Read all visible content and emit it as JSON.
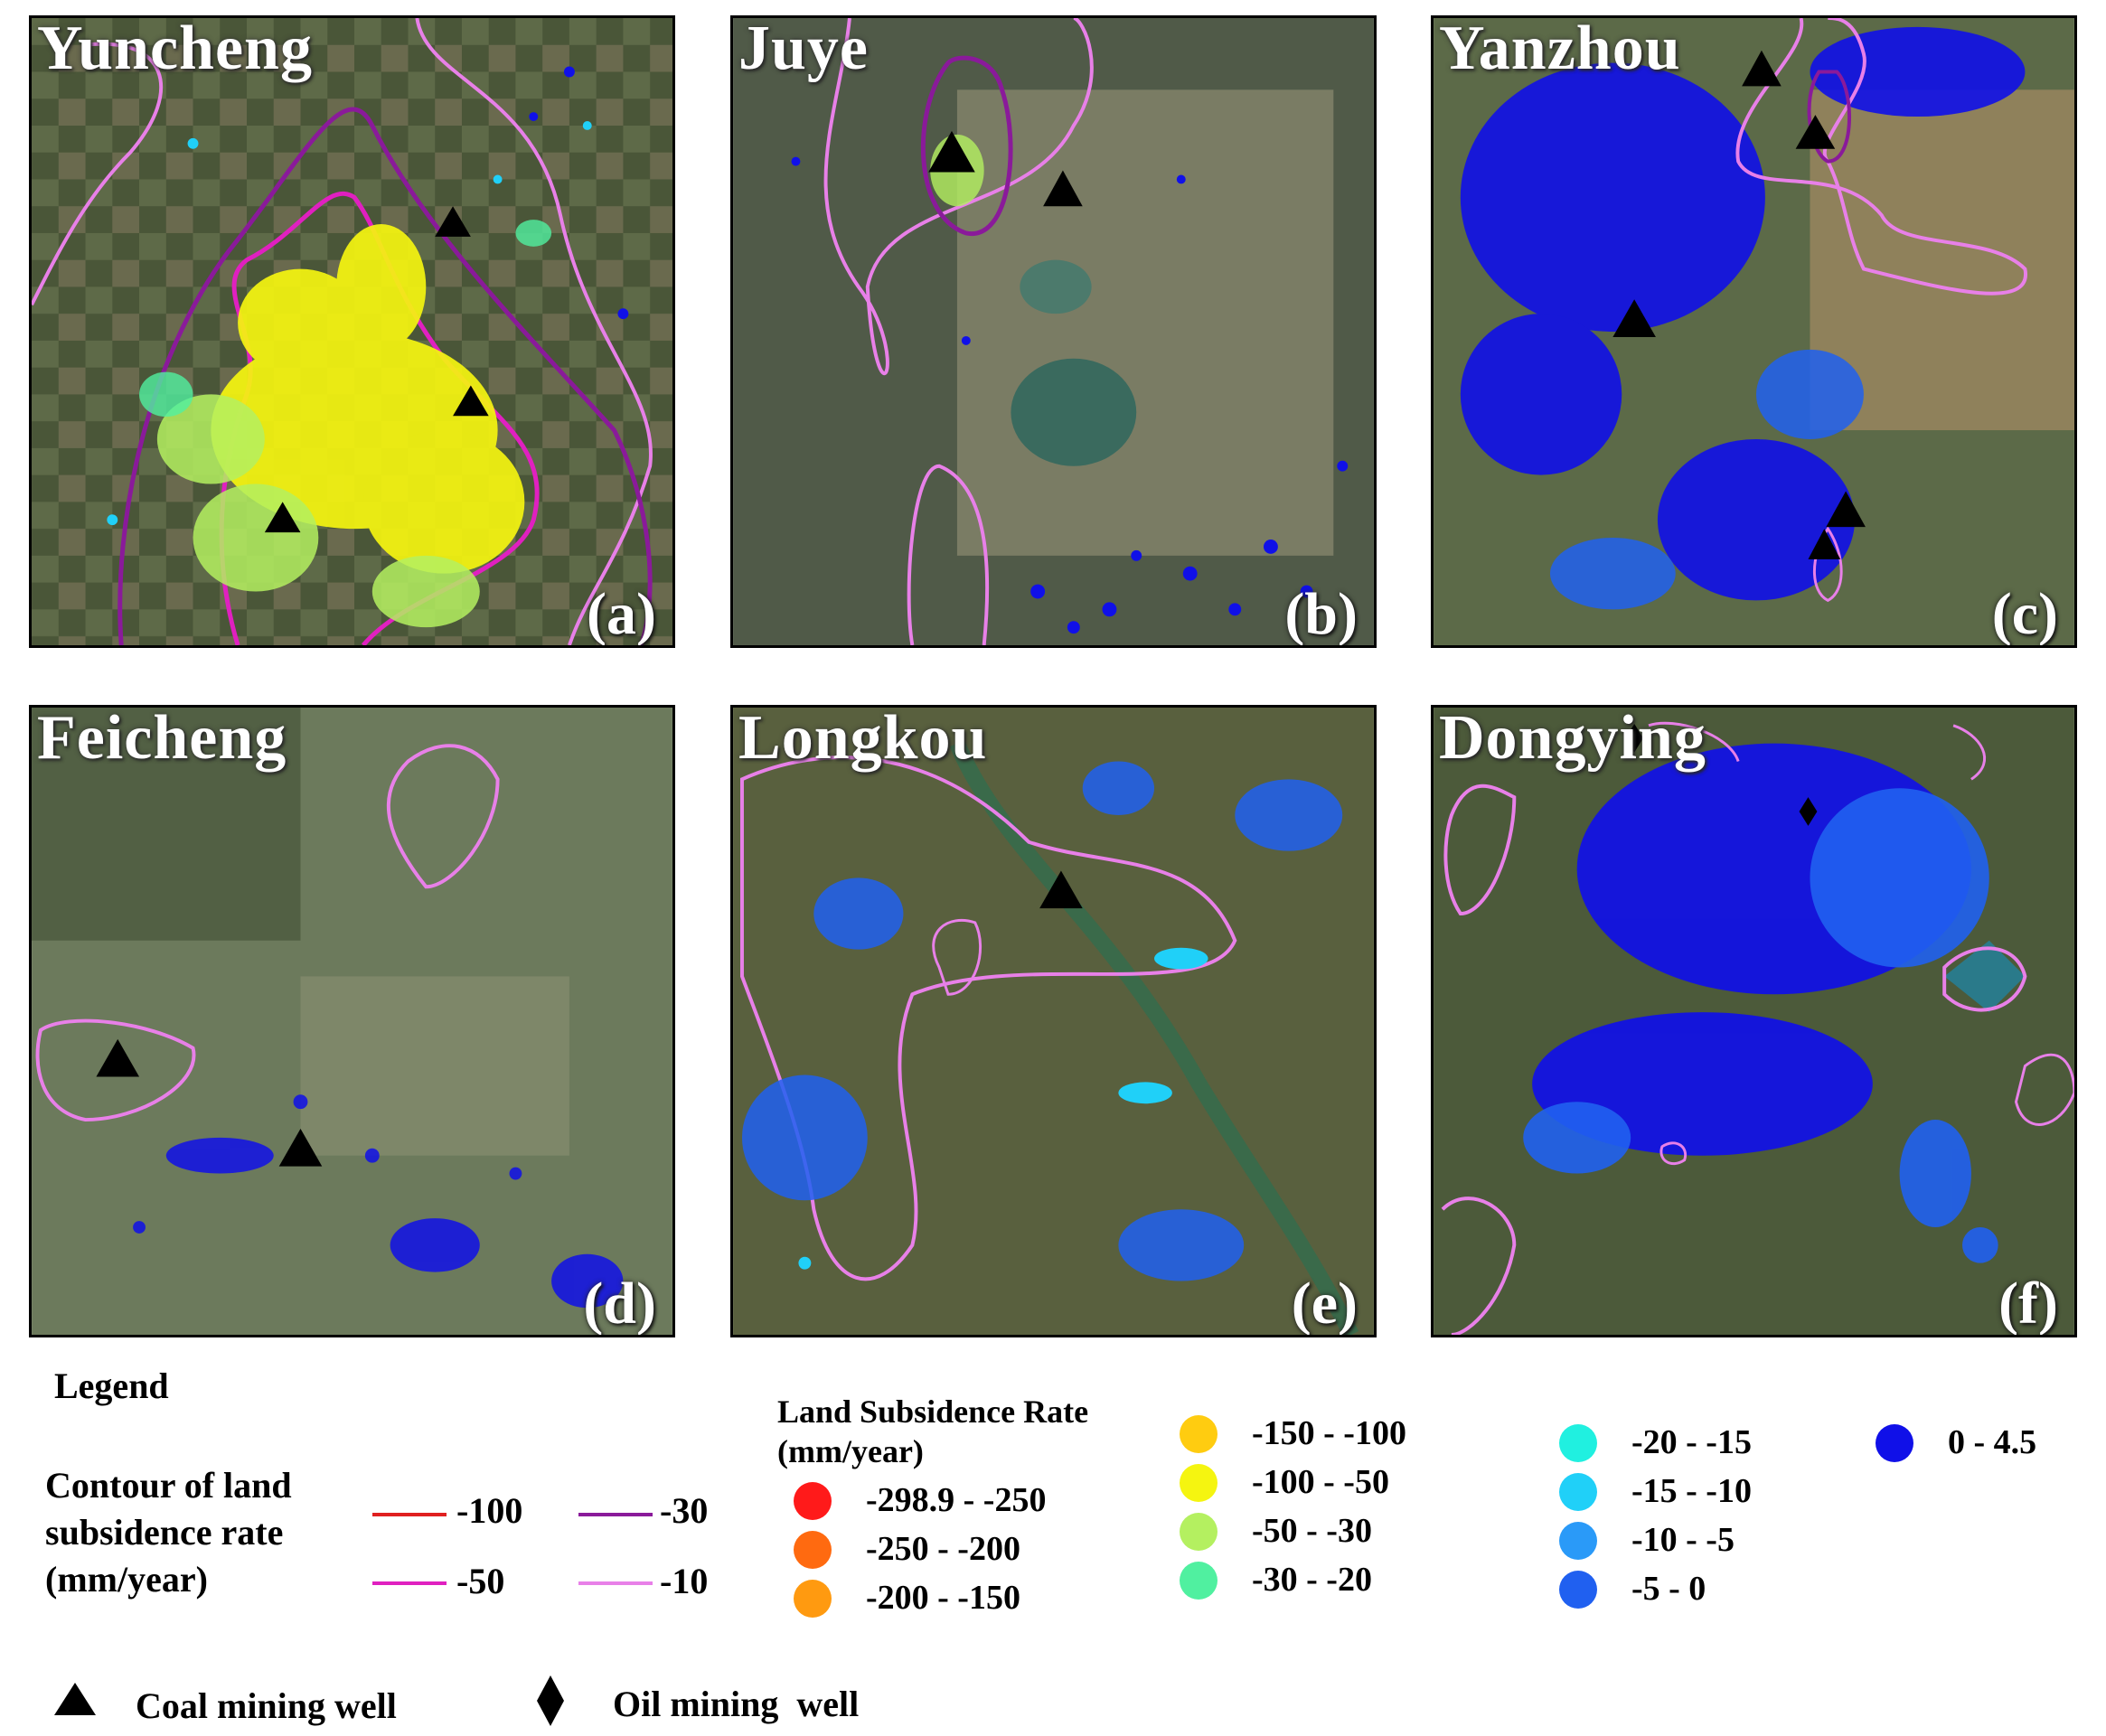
{
  "panels": [
    {
      "name": "Yuncheng",
      "label": "(a)"
    },
    {
      "name": "Juye",
      "label": "(b)"
    },
    {
      "name": "Yanzhou",
      "label": "(c)"
    },
    {
      "name": "Feicheng",
      "label": "(d)"
    },
    {
      "name": "Longkou",
      "label": "(e)"
    },
    {
      "name": "Dongying",
      "label": "(f)"
    }
  ],
  "legend": {
    "title": "Legend",
    "contour_title_1": "Contour of land",
    "contour_title_2": "subsidence rate",
    "contour_title_3": "(mm/year)",
    "contours": [
      {
        "label": "-100",
        "color": "#e02020"
      },
      {
        "label": "-30",
        "color": "#8a1a9a"
      },
      {
        "label": "-50",
        "color": "#e020c0"
      },
      {
        "label": "-10",
        "color": "#e880e8"
      }
    ],
    "rate_title_1": "Land Subsidence Rate",
    "rate_title_2": "(mm/year)",
    "rates": [
      {
        "label": "-298.9 - -250",
        "color": "#ff1a1a"
      },
      {
        "label": "-250 - -200",
        "color": "#ff6a10"
      },
      {
        "label": "-200 - -150",
        "color": "#ff9a10"
      },
      {
        "label": "-150 - -100",
        "color": "#ffcc10"
      },
      {
        "label": "-100 - -50",
        "color": "#f5f510"
      },
      {
        "label": "-50 - -30",
        "color": "#b4f060"
      },
      {
        "label": "-30 - -20",
        "color": "#50f0a0"
      },
      {
        "label": "-20 - -15",
        "color": "#20f0e0"
      },
      {
        "label": "-15 - -10",
        "color": "#20d0f8"
      },
      {
        "label": "-10 - -5",
        "color": "#2a9af8"
      },
      {
        "label": "-5 - 0",
        "color": "#2060f0"
      },
      {
        "label": "0 - 4.5",
        "color": "#1010e8"
      }
    ],
    "coal_label": "Coal mining well",
    "oil_label": "Oil mining  well"
  }
}
